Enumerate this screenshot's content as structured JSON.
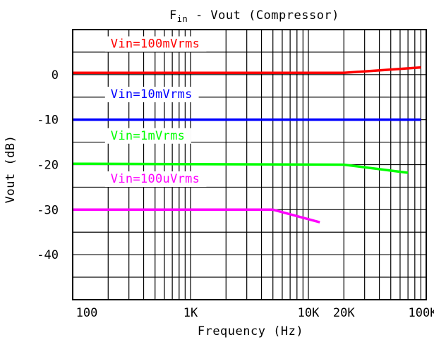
{
  "chart_data": {
    "type": "line",
    "title_main": "F",
    "title_sub": "in",
    "title_rest": " - Vout (Compressor)",
    "xlabel": "Frequency (Hz)",
    "ylabel": "Vout (dB)",
    "x_scale": "log",
    "xlim": [
      100,
      100000
    ],
    "ylim": [
      -50,
      10
    ],
    "grid": true,
    "x_ticks": [
      {
        "value": 100,
        "label": "100"
      },
      {
        "value": 1000,
        "label": "1K"
      },
      {
        "value": 10000,
        "label": "10K"
      },
      {
        "value": 20000,
        "label": "20K"
      },
      {
        "value": 100000,
        "label": "100K"
      }
    ],
    "y_ticks": [
      {
        "value": 0,
        "label": "0"
      },
      {
        "value": -10,
        "label": "-10"
      },
      {
        "value": -20,
        "label": "-20"
      },
      {
        "value": -30,
        "label": "-30"
      },
      {
        "value": -40,
        "label": "-40"
      }
    ],
    "series": [
      {
        "name": "Vin=100mVrms",
        "color": "#ff0000",
        "label_at": {
          "x": 210,
          "y": 6.0
        },
        "points": [
          [
            100,
            0.4
          ],
          [
            20000,
            0.4
          ],
          [
            90000,
            1.6
          ]
        ]
      },
      {
        "name": "Vin=10mVrms",
        "color": "#0000ff",
        "label_at": {
          "x": 210,
          "y": -5.2
        },
        "points": [
          [
            100,
            -10.0
          ],
          [
            90000,
            -10.0
          ]
        ]
      },
      {
        "name": "Vin=1mVrms",
        "color": "#00ff00",
        "label_at": {
          "x": 210,
          "y": -14.4
        },
        "points": [
          [
            100,
            -19.8
          ],
          [
            20000,
            -20.0
          ],
          [
            70000,
            -21.8
          ]
        ]
      },
      {
        "name": "Vin=100uVrms",
        "color": "#ff00ff",
        "label_at": {
          "x": 210,
          "y": -24.0
        },
        "points": [
          [
            100,
            -30.0
          ],
          [
            5000,
            -30.0
          ],
          [
            12500,
            -32.8
          ]
        ]
      }
    ]
  }
}
